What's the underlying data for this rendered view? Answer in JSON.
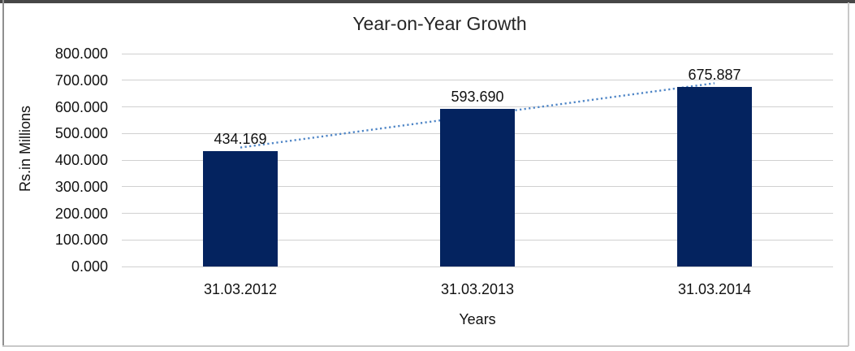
{
  "chart_data": {
    "type": "bar",
    "title": "Year-on-Year Growth",
    "xlabel": "Years",
    "ylabel": "Rs.in Millions",
    "categories": [
      "31.03.2012",
      "31.03.2013",
      "31.03.2014"
    ],
    "values": [
      434.169,
      593.69,
      675.887
    ],
    "data_labels": [
      "434.169",
      "593.690",
      "675.887"
    ],
    "ylim": [
      0,
      800
    ],
    "ytick_step": 100,
    "ytick_labels": [
      "0.000",
      "100.000",
      "200.000",
      "300.000",
      "400.000",
      "500.000",
      "600.000",
      "700.000",
      "800.000"
    ],
    "grid": true,
    "legend": "none",
    "bar_color": "#04235F",
    "gridline_color": "#d0d0d0",
    "trendline": {
      "type": "linear",
      "style": "dotted",
      "color": "#4E85C6"
    }
  }
}
